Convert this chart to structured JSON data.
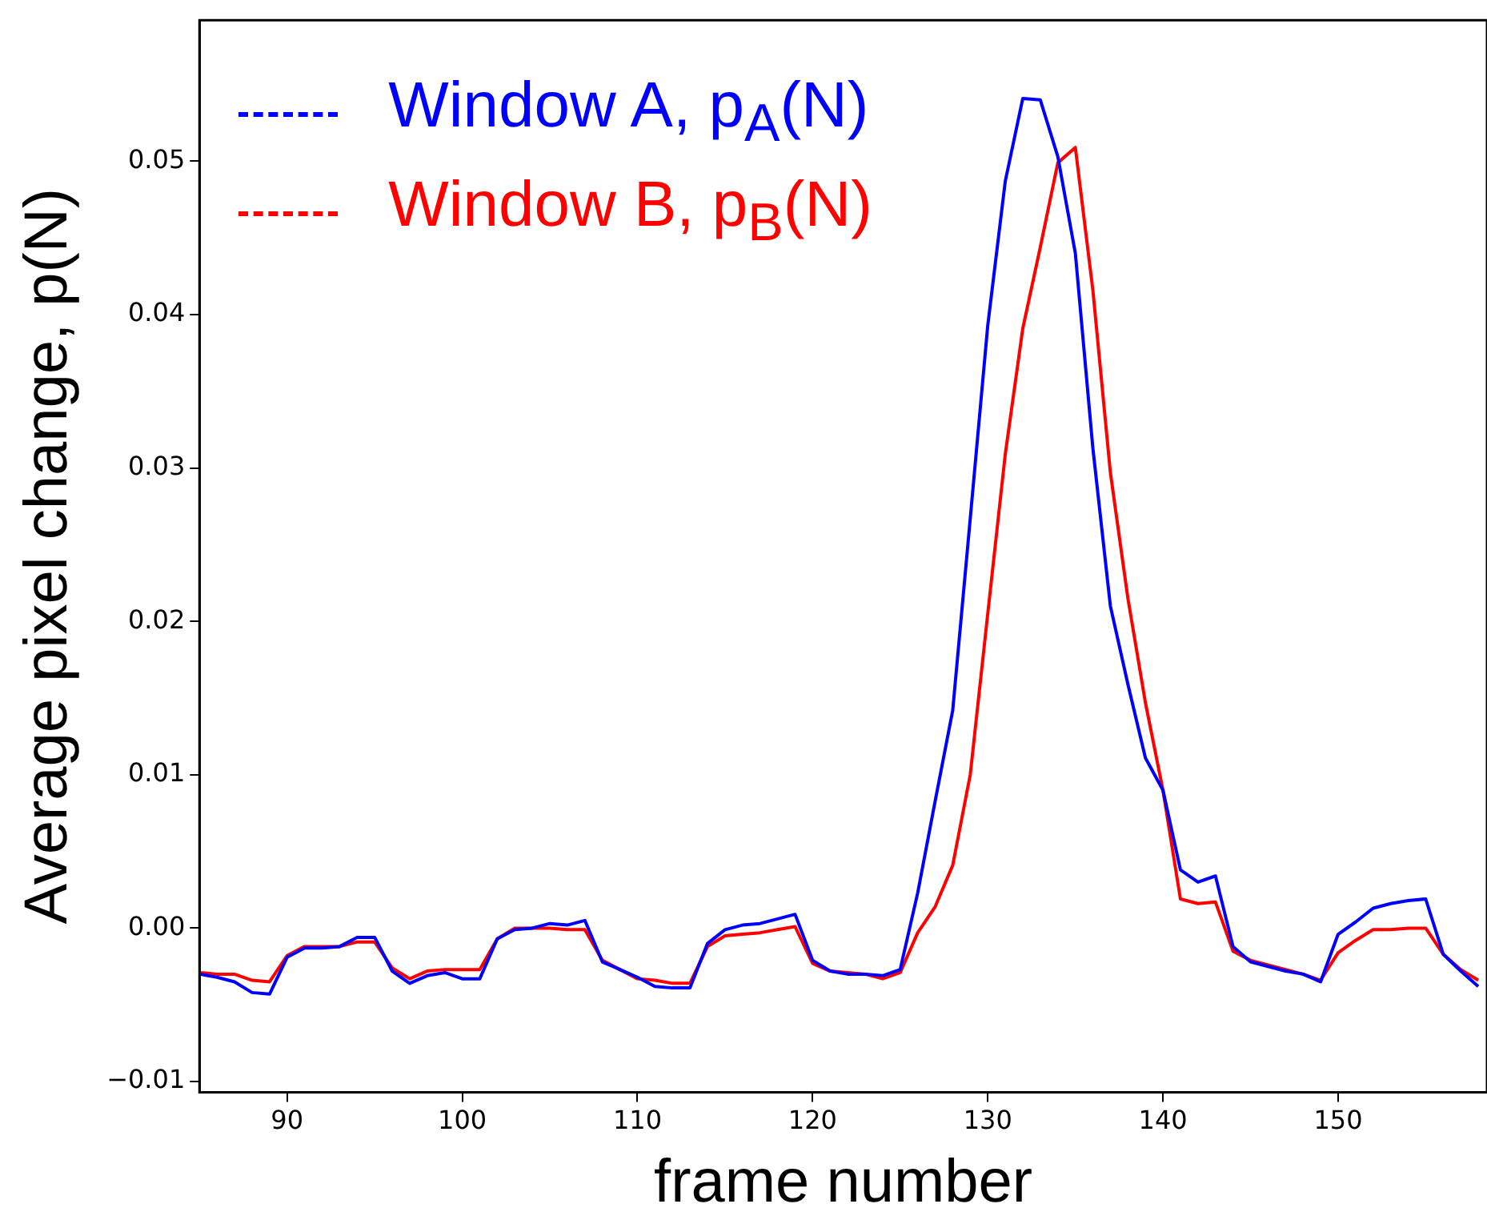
{
  "chart_data": {
    "type": "line",
    "xlabel": "frame number",
    "ylabel": "Average pixel change, p(N)",
    "x": [
      85,
      86,
      87,
      88,
      89,
      90,
      91,
      92,
      93,
      94,
      95,
      96,
      97,
      98,
      99,
      100,
      101,
      102,
      103,
      104,
      105,
      106,
      107,
      108,
      109,
      110,
      111,
      112,
      113,
      114,
      115,
      116,
      117,
      118,
      119,
      120,
      121,
      122,
      123,
      124,
      125,
      126,
      127,
      128,
      129,
      130,
      131,
      132,
      133,
      134,
      135,
      136,
      137,
      138,
      139,
      140,
      141,
      142,
      143,
      144,
      145,
      146,
      147,
      148,
      149,
      150,
      151,
      152,
      153,
      154,
      155,
      156,
      157,
      158
    ],
    "series": [
      {
        "name": "Window A, p$_{A}$(N)",
        "color": "#0000ff",
        "values": [
          -0.003,
          -0.0032,
          -0.0035,
          -0.0042,
          -0.0043,
          -0.0019,
          -0.0013,
          -0.0013,
          -0.0012,
          -0.0006,
          -0.0006,
          -0.0028,
          -0.0036,
          -0.0031,
          -0.0029,
          -0.0033,
          -0.0033,
          -0.0007,
          -0.0001,
          0.0,
          0.0003,
          0.0002,
          0.0005,
          -0.0022,
          -0.0027,
          -0.0032,
          -0.0038,
          -0.0039,
          -0.0039,
          -0.001,
          -0.0001,
          0.0002,
          0.0003,
          0.0006,
          0.0009,
          -0.0021,
          -0.0028,
          -0.003,
          -0.003,
          -0.0031,
          -0.0027,
          0.0023,
          0.0083,
          0.0142,
          0.0267,
          0.0393,
          0.0487,
          0.0541,
          0.054,
          0.0503,
          0.044,
          0.0313,
          0.021,
          0.0159,
          0.0111,
          0.009,
          0.0038,
          0.003,
          0.0034,
          -0.0012,
          -0.0022,
          -0.0025,
          -0.0028,
          -0.003,
          -0.0035,
          -0.0004,
          0.0004,
          0.0013,
          0.0016,
          0.0018,
          0.0019,
          -0.0017,
          -0.0028,
          -0.0038
        ]
      },
      {
        "name": "Window B, p$_{B}$(N)",
        "color": "#ff0000",
        "values": [
          -0.0029,
          -0.003,
          -0.003,
          -0.0034,
          -0.0035,
          -0.0018,
          -0.0012,
          -0.0012,
          -0.0012,
          -0.0009,
          -0.0009,
          -0.0026,
          -0.0033,
          -0.0028,
          -0.0027,
          -0.0027,
          -0.0027,
          -0.0007,
          0.0,
          0.0,
          0.0,
          -0.0001,
          -0.0001,
          -0.0021,
          -0.0027,
          -0.0033,
          -0.0034,
          -0.0036,
          -0.0036,
          -0.0012,
          -0.0005,
          -0.0004,
          -0.0003,
          -0.0001,
          0.0001,
          -0.0023,
          -0.0028,
          -0.0029,
          -0.003,
          -0.0033,
          -0.0029,
          -0.0003,
          0.0014,
          0.0041,
          0.01,
          0.0205,
          0.0309,
          0.0391,
          0.0444,
          0.0499,
          0.0509,
          0.0416,
          0.0297,
          0.0215,
          0.0147,
          0.009,
          0.0019,
          0.0016,
          0.0017,
          -0.0015,
          -0.0021,
          -0.0024,
          -0.0027,
          -0.003,
          -0.0034,
          -0.0016,
          -0.0008,
          -0.0001,
          -0.0001,
          0.0,
          0.0,
          -0.0017,
          -0.0027,
          -0.0034
        ]
      }
    ],
    "xlim": [
      85,
      158.5
    ],
    "xticks": [
      90,
      100,
      110,
      120,
      130,
      140,
      150
    ],
    "ylim": [
      -0.0107,
      0.0592
    ],
    "yticks": [
      {
        "value": -0.01,
        "label": "−0.01"
      },
      {
        "value": 0,
        "label": "0.00"
      },
      0.01,
      0.02,
      0.03,
      0.04,
      0.05
    ],
    "grid": false,
    "legend": "top left",
    "marker": "none",
    "line_style": "solid"
  }
}
